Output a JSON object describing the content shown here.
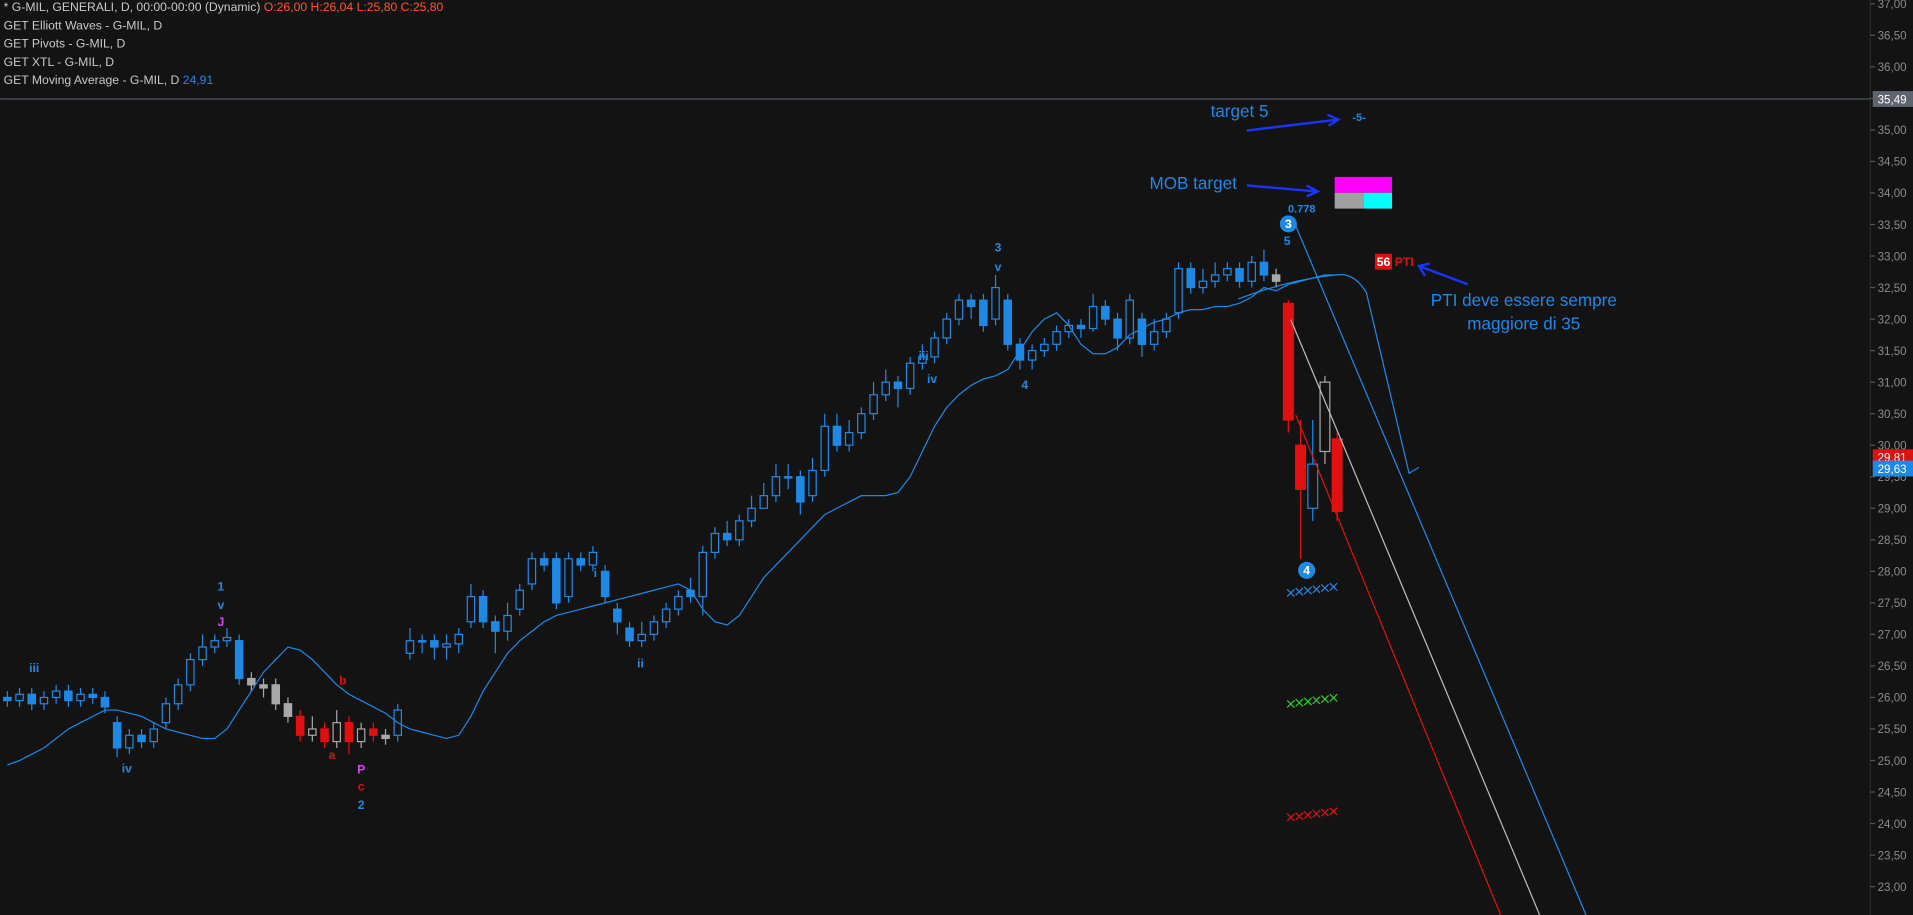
{
  "chart_data": {
    "type": "candlestick",
    "header": {
      "symbol": "* G-MIL, GENERALI, D, 00:00-00:00 (Dynamic)",
      "ohlc_text": "O:26,00 H:26,04 L:25,80 C:25,80",
      "indicators": [
        "GET Elliott Waves - G-MIL, D",
        "GET Pivots - G-MIL, D",
        "GET XTL - G-MIL, D",
        "GET Moving Average - G-MIL, D"
      ],
      "ma_value": "24,91"
    },
    "color": "#1e88e5",
    "ma_color": "#1e88e5",
    "ohlc": [
      [
        26.0,
        26.1,
        25.85,
        25.95
      ],
      [
        25.95,
        26.15,
        25.85,
        26.05
      ],
      [
        26.05,
        26.15,
        25.8,
        25.9
      ],
      [
        25.9,
        26.1,
        25.8,
        26.0
      ],
      [
        26.0,
        26.2,
        25.9,
        26.1
      ],
      [
        26.1,
        26.2,
        25.85,
        25.95
      ],
      [
        25.95,
        26.15,
        25.85,
        26.05
      ],
      [
        26.05,
        26.15,
        25.9,
        26.0
      ],
      [
        26.0,
        26.1,
        25.75,
        25.85
      ],
      [
        25.6,
        25.7,
        25.05,
        25.2
      ],
      [
        25.2,
        25.5,
        25.1,
        25.4
      ],
      [
        25.4,
        25.5,
        25.2,
        25.3
      ],
      [
        25.3,
        25.6,
        25.2,
        25.5
      ],
      [
        25.6,
        26.0,
        25.5,
        25.9
      ],
      [
        25.9,
        26.3,
        25.8,
        26.2
      ],
      [
        26.2,
        26.7,
        26.1,
        26.6
      ],
      [
        26.6,
        27.0,
        26.5,
        26.8
      ],
      [
        26.8,
        27.0,
        26.7,
        26.9
      ],
      [
        26.9,
        27.1,
        26.8,
        26.95
      ],
      [
        26.9,
        27.0,
        26.2,
        26.3
      ],
      [
        26.3,
        26.4,
        26.1,
        26.2
      ],
      [
        26.2,
        26.3,
        26.0,
        26.15
      ],
      [
        26.2,
        26.3,
        25.8,
        25.9
      ],
      [
        25.9,
        26.0,
        25.6,
        25.7
      ],
      [
        25.7,
        25.8,
        25.3,
        25.4
      ],
      [
        25.4,
        25.7,
        25.3,
        25.5
      ],
      [
        25.5,
        25.6,
        25.2,
        25.3
      ],
      [
        25.3,
        25.8,
        25.2,
        25.6
      ],
      [
        25.6,
        25.7,
        25.1,
        25.3
      ],
      [
        25.3,
        25.6,
        25.2,
        25.5
      ],
      [
        25.5,
        25.6,
        25.3,
        25.4
      ],
      [
        25.4,
        25.5,
        25.25,
        25.35
      ],
      [
        25.4,
        25.9,
        25.3,
        25.8
      ],
      [
        26.7,
        27.1,
        26.6,
        26.9
      ],
      [
        26.9,
        27.0,
        26.7,
        26.9
      ],
      [
        26.9,
        27.0,
        26.6,
        26.8
      ],
      [
        26.8,
        27.0,
        26.6,
        26.85
      ],
      [
        26.85,
        27.1,
        26.7,
        27.0
      ],
      [
        27.2,
        27.8,
        27.1,
        27.6
      ],
      [
        27.6,
        27.7,
        27.1,
        27.2
      ],
      [
        27.2,
        27.3,
        26.7,
        27.05
      ],
      [
        27.05,
        27.5,
        26.9,
        27.3
      ],
      [
        27.4,
        27.8,
        27.3,
        27.7
      ],
      [
        27.8,
        28.3,
        27.7,
        28.2
      ],
      [
        28.2,
        28.3,
        28.0,
        28.1
      ],
      [
        28.2,
        28.3,
        27.4,
        27.5
      ],
      [
        27.6,
        28.3,
        27.5,
        28.2
      ],
      [
        28.2,
        28.3,
        28.0,
        28.1
      ],
      [
        28.1,
        28.4,
        28.0,
        28.3
      ],
      [
        28.0,
        28.1,
        27.5,
        27.6
      ],
      [
        27.4,
        27.5,
        27.0,
        27.2
      ],
      [
        27.1,
        27.2,
        26.8,
        26.9
      ],
      [
        26.9,
        27.2,
        26.8,
        27.0
      ],
      [
        27.0,
        27.3,
        26.9,
        27.2
      ],
      [
        27.2,
        27.5,
        27.1,
        27.4
      ],
      [
        27.4,
        27.7,
        27.3,
        27.6
      ],
      [
        27.7,
        27.9,
        27.5,
        27.6
      ],
      [
        27.6,
        28.4,
        27.3,
        28.3
      ],
      [
        28.3,
        28.7,
        28.2,
        28.6
      ],
      [
        28.6,
        28.8,
        28.4,
        28.5
      ],
      [
        28.5,
        28.9,
        28.4,
        28.8
      ],
      [
        28.8,
        29.2,
        28.7,
        29.0
      ],
      [
        29.0,
        29.4,
        29.0,
        29.2
      ],
      [
        29.2,
        29.7,
        29.1,
        29.5
      ],
      [
        29.5,
        29.7,
        29.3,
        29.5
      ],
      [
        29.5,
        29.6,
        28.9,
        29.1
      ],
      [
        29.2,
        29.8,
        29.1,
        29.6
      ],
      [
        29.6,
        30.5,
        29.5,
        30.3
      ],
      [
        30.3,
        30.5,
        29.9,
        30.0
      ],
      [
        30.0,
        30.4,
        29.9,
        30.2
      ],
      [
        30.2,
        30.6,
        30.1,
        30.5
      ],
      [
        30.5,
        31.0,
        30.4,
        30.8
      ],
      [
        30.8,
        31.2,
        30.7,
        31.0
      ],
      [
        31.0,
        31.1,
        30.6,
        30.9
      ],
      [
        30.9,
        31.4,
        30.8,
        31.3
      ],
      [
        31.3,
        31.6,
        31.2,
        31.4
      ],
      [
        31.4,
        31.8,
        31.3,
        31.7
      ],
      [
        31.7,
        32.1,
        31.6,
        32.0
      ],
      [
        32.0,
        32.4,
        31.9,
        32.3
      ],
      [
        32.3,
        32.4,
        32.0,
        32.2
      ],
      [
        32.3,
        32.4,
        31.8,
        31.9
      ],
      [
        32.0,
        32.7,
        31.9,
        32.5
      ],
      [
        32.3,
        32.4,
        31.5,
        31.6
      ],
      [
        31.6,
        31.7,
        31.2,
        31.35
      ],
      [
        31.35,
        31.6,
        31.2,
        31.5
      ],
      [
        31.5,
        31.7,
        31.4,
        31.6
      ],
      [
        31.6,
        31.9,
        31.5,
        31.8
      ],
      [
        31.8,
        32.0,
        31.7,
        31.9
      ],
      [
        31.9,
        32.0,
        31.7,
        31.85
      ],
      [
        31.85,
        32.4,
        31.8,
        32.2
      ],
      [
        32.2,
        32.3,
        31.9,
        32.0
      ],
      [
        32.0,
        32.1,
        31.5,
        31.7
      ],
      [
        31.7,
        32.4,
        31.6,
        32.3
      ],
      [
        32.0,
        32.1,
        31.4,
        31.6
      ],
      [
        31.6,
        32.0,
        31.5,
        31.8
      ],
      [
        31.8,
        32.1,
        31.7,
        32.0
      ],
      [
        32.1,
        32.9,
        32.0,
        32.8
      ],
      [
        32.8,
        32.9,
        32.4,
        32.5
      ],
      [
        32.5,
        32.8,
        32.4,
        32.6
      ],
      [
        32.6,
        32.9,
        32.5,
        32.7
      ],
      [
        32.7,
        32.9,
        32.6,
        32.8
      ],
      [
        32.8,
        32.9,
        32.5,
        32.6
      ],
      [
        32.6,
        33.0,
        32.5,
        32.9
      ],
      [
        32.9,
        33.1,
        32.6,
        32.7
      ],
      [
        32.7,
        32.8,
        32.5,
        32.6
      ],
      [
        32.25,
        32.3,
        30.2,
        30.4
      ],
      [
        30.0,
        30.4,
        28.2,
        29.3
      ],
      [
        29.0,
        30.4,
        28.8,
        29.7
      ],
      [
        29.9,
        31.1,
        29.7,
        31.0
      ],
      [
        30.1,
        30.2,
        28.8,
        28.95
      ]
    ],
    "ma_values": [
      24.93,
      25.0,
      25.1,
      25.2,
      25.35,
      25.5,
      25.6,
      25.7,
      25.8,
      25.8,
      25.75,
      25.7,
      25.6,
      25.5,
      25.45,
      25.4,
      25.35,
      25.35,
      25.5,
      25.8,
      26.1,
      26.4,
      26.6,
      26.8,
      26.75,
      26.6,
      26.4,
      26.2,
      26.05,
      25.95,
      25.85,
      25.75,
      25.6,
      25.5,
      25.45,
      25.4,
      25.35,
      25.4,
      25.7,
      26.1,
      26.4,
      26.7,
      26.9,
      27.05,
      27.2,
      27.3,
      27.35,
      27.4,
      27.45,
      27.5,
      27.55,
      27.6,
      27.65,
      27.7,
      27.75,
      27.8,
      27.7,
      27.4,
      27.2,
      27.15,
      27.3,
      27.6,
      27.9,
      28.1,
      28.3,
      28.5,
      28.7,
      28.9,
      29.0,
      29.1,
      29.2,
      29.2,
      29.2,
      29.25,
      29.5,
      29.9,
      30.3,
      30.6,
      30.8,
      30.95,
      31.05,
      31.1,
      31.2,
      31.5,
      31.8,
      32.0,
      32.1,
      31.9,
      31.6,
      31.45,
      31.45,
      31.55,
      31.75,
      31.85,
      31.95,
      32.0,
      32.1,
      32.15,
      32.15,
      32.2,
      32.2,
      32.25,
      32.35,
      32.5,
      32.45,
      32.55,
      32.6,
      32.65,
      32.7,
      32.7
    ],
    "ylim": [
      22.55,
      37.06
    ],
    "yticks": [
      {
        "value": 23,
        "label": "23,00"
      },
      {
        "value": 23.5,
        "label": "23,50"
      },
      {
        "value": 24,
        "label": "24,00"
      },
      {
        "value": 24.5,
        "label": "24,50"
      },
      {
        "value": 25,
        "label": "25,00"
      },
      {
        "value": 25.5,
        "label": "25,50"
      },
      {
        "value": 26,
        "label": "26,00"
      },
      {
        "value": 26.5,
        "label": "26,50"
      },
      {
        "value": 27,
        "label": "27,00"
      },
      {
        "value": 27.5,
        "label": "27,50"
      },
      {
        "value": 28,
        "label": "28,00"
      },
      {
        "value": 28.5,
        "label": "28,50"
      },
      {
        "value": 29,
        "label": "29,00"
      },
      {
        "value": 29.5,
        "label": "29,50"
      },
      {
        "value": 30,
        "label": "30,00"
      },
      {
        "value": 30.5,
        "label": "30,50"
      },
      {
        "value": 31,
        "label": "31,00"
      },
      {
        "value": 31.5,
        "label": "31,50"
      },
      {
        "value": 32,
        "label": "32,00"
      },
      {
        "value": 32.5,
        "label": "32,50"
      },
      {
        "value": 33,
        "label": "33,00"
      },
      {
        "value": 33.5,
        "label": "33,50"
      },
      {
        "value": 34,
        "label": "34,00"
      },
      {
        "value": 34.5,
        "label": "34,50"
      },
      {
        "value": 35,
        "label": "35,00"
      },
      {
        "value": 35.5,
        "label": "35,50"
      },
      {
        "value": 36,
        "label": "36,00"
      },
      {
        "value": 36.5,
        "label": "36,50"
      },
      {
        "value": 37,
        "label": "37,00"
      }
    ],
    "price_labels": [
      {
        "value": 35.49,
        "label": "35,49",
        "color": "#5f6470"
      },
      {
        "value": 29.81,
        "label": "29,81",
        "color": "#e01010"
      },
      {
        "value": 29.63,
        "label": "29,63",
        "color": "#1e88e5"
      }
    ],
    "annotations": [
      "iii",
      "iv",
      "1",
      "v",
      "J",
      "b",
      "a",
      "P",
      "c",
      "2",
      "i",
      "ii",
      "iii",
      "iv",
      "3",
      "v",
      "4",
      "0.778",
      "3",
      "5",
      "4",
      "target 5",
      "-5-",
      "MOB target",
      "PTI deve essere sempre",
      "maggiore di 35",
      "56",
      "PTI"
    ]
  }
}
